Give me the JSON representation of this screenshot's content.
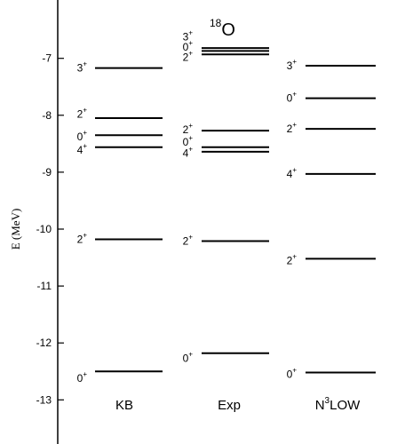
{
  "chart_data": {
    "type": "level-scheme",
    "title": "18O",
    "title_parts": {
      "superscript": "18",
      "base": "O"
    },
    "ylabel": "E (MeV)",
    "ylim": [
      -13.9,
      -6.1
    ],
    "yticks": [
      "-7",
      "-8",
      "-9",
      "-10",
      "-11",
      "-12",
      "-13"
    ],
    "ytick_values": [
      -7,
      -8,
      -9,
      -10,
      -11,
      -12,
      -13
    ],
    "grid": false,
    "columns": [
      {
        "name": "KB",
        "name_parts": {
          "base": "KB"
        },
        "levels": [
          {
            "label_base": "3",
            "label_sup": "+",
            "energy": -7.17
          },
          {
            "label_base": "2",
            "label_sup": "+",
            "energy": -8.05
          },
          {
            "label_base": "0",
            "label_sup": "+",
            "energy": -8.35
          },
          {
            "label_base": "4",
            "label_sup": "+",
            "energy": -8.56
          },
          {
            "label_base": "2",
            "label_sup": "+",
            "energy": -10.18
          },
          {
            "label_base": "0",
            "label_sup": "+",
            "energy": -12.5
          }
        ]
      },
      {
        "name": "Exp",
        "name_parts": {
          "base": "Exp"
        },
        "levels": [
          {
            "label_base": "3",
            "label_sup": "+",
            "energy": -6.82
          },
          {
            "label_base": "0",
            "label_sup": "+",
            "energy": -6.87
          },
          {
            "label_base": "2",
            "label_sup": "+",
            "energy": -6.93
          },
          {
            "label_base": "2",
            "label_sup": "+",
            "energy": -8.27
          },
          {
            "label_base": "0",
            "label_sup": "+",
            "energy": -8.56
          },
          {
            "label_base": "4",
            "label_sup": "+",
            "energy": -8.64
          },
          {
            "label_base": "2",
            "label_sup": "+",
            "energy": -10.21
          },
          {
            "label_base": "0",
            "label_sup": "+",
            "energy": -12.18
          }
        ]
      },
      {
        "name": "N3LOW",
        "name_parts": {
          "base": "N",
          "sup": "3",
          "rest": "LOW"
        },
        "levels": [
          {
            "label_base": "3",
            "label_sup": "+",
            "energy": -7.13
          },
          {
            "label_base": "0",
            "label_sup": "+",
            "energy": -7.7
          },
          {
            "label_base": "2",
            "label_sup": "+",
            "energy": -8.24
          },
          {
            "label_base": "4",
            "label_sup": "+",
            "energy": -9.03
          },
          {
            "label_base": "2",
            "label_sup": "+",
            "energy": -10.52
          },
          {
            "label_base": "0",
            "label_sup": "+",
            "energy": -12.52
          }
        ]
      }
    ],
    "label_positions": {
      "Exp": [
        {
          "label_base": "3",
          "energy": -6.62
        },
        {
          "label_base": "0",
          "energy": -6.8
        },
        {
          "label_base": "2",
          "energy": -6.98
        },
        {
          "label_base": "2",
          "energy": -8.25
        },
        {
          "label_base": "0",
          "energy": -8.47
        },
        {
          "label_base": "4",
          "energy": -8.67
        },
        {
          "label_base": "2",
          "energy": -10.21
        },
        {
          "label_base": "0",
          "energy": -12.27
        }
      ],
      "KB": [
        {
          "label_base": "3",
          "energy": -7.17
        },
        {
          "label_base": "2",
          "energy": -7.98
        },
        {
          "label_base": "0",
          "energy": -8.38
        },
        {
          "label_base": "4",
          "energy": -8.61
        },
        {
          "label_base": "2",
          "energy": -10.18
        },
        {
          "label_base": "0",
          "energy": -12.62
        }
      ],
      "N3LOW": [
        {
          "label_base": "3",
          "energy": -7.13
        },
        {
          "label_base": "0",
          "energy": -7.7
        },
        {
          "label_base": "2",
          "energy": -8.24
        },
        {
          "label_base": "4",
          "energy": -9.03
        },
        {
          "label_base": "2",
          "energy": -10.55
        },
        {
          "label_base": "0",
          "energy": -12.55
        }
      ]
    }
  }
}
